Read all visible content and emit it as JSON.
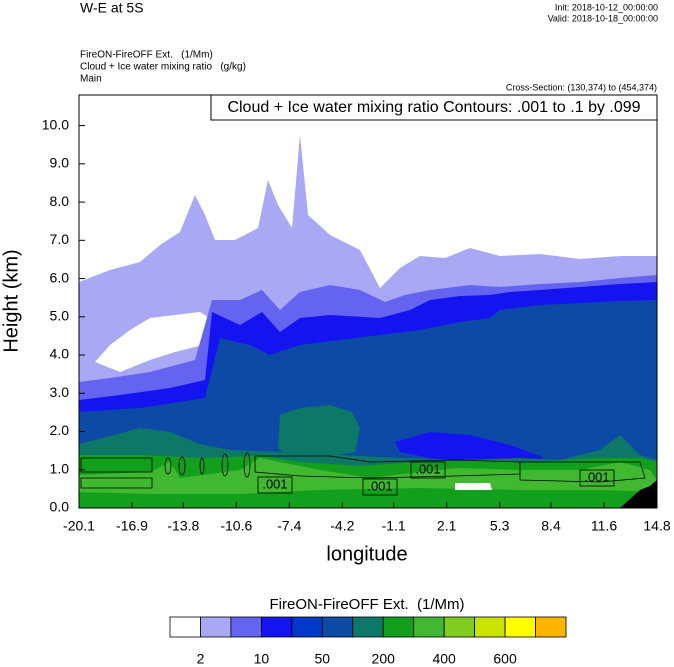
{
  "chart_data": {
    "type": "contour",
    "title": "W-E at 5S",
    "init": "Init: 2018-10-12_00:00:00",
    "valid": "Valid: 2018-10-18_00:00:00",
    "fill_field": "FireON-FireOFF Ext.   (1/Mm)",
    "contour_field": "Cloud + Ice water mixing ratio   (g/kg)",
    "domain": "Main",
    "cross_section": "Cross-Section: (130,374) to (454,374)",
    "contour_info": "Cloud + Ice water mixing ratio Contours: .001 to .1 by .099",
    "contour_labels": [
      ".001",
      ".001",
      ".001",
      ".001"
    ],
    "x_label": "longitude",
    "y_label": "Height (km)",
    "xlim": [
      -20.1,
      14.8
    ],
    "xticks": [
      -20.1,
      -16.9,
      -13.8,
      -10.6,
      -7.4,
      -4.2,
      -1.1,
      2.1,
      5.3,
      8.4,
      11.6,
      14.8
    ],
    "ylim": [
      0,
      10.8
    ],
    "yticks": [
      {
        "value": 0,
        "label": "0.0"
      },
      {
        "value": 1,
        "label": "1.0"
      },
      {
        "value": 2,
        "label": "2.0"
      },
      {
        "value": 3,
        "label": "3.0"
      },
      {
        "value": 4,
        "label": "4.0"
      },
      {
        "value": 5,
        "label": "5.0"
      },
      {
        "value": 6,
        "label": "6.0"
      },
      {
        "value": 7,
        "label": "7.0"
      },
      {
        "value": 8,
        "label": "8.0"
      },
      {
        "value": 9,
        "label": "9.0"
      },
      {
        "value": 10,
        "label": "10.0"
      }
    ],
    "colorbar": {
      "title": "FireON-FireOFF Ext.  (1/Mm)",
      "colors": [
        "#ffffff",
        "#a8a8f4",
        "#6464f0",
        "#1414f0",
        "#0038c8",
        "#0c4aa6",
        "#0e7868",
        "#12a01c",
        "#40b830",
        "#80cc20",
        "#c8e400",
        "#ffff00",
        "#ffb400",
        "#ff6400",
        "#ff1a1a"
      ],
      "labels": [
        2,
        null,
        10,
        null,
        50,
        null,
        200,
        null,
        400,
        null,
        600,
        null,
        null,
        null
      ]
    }
  }
}
